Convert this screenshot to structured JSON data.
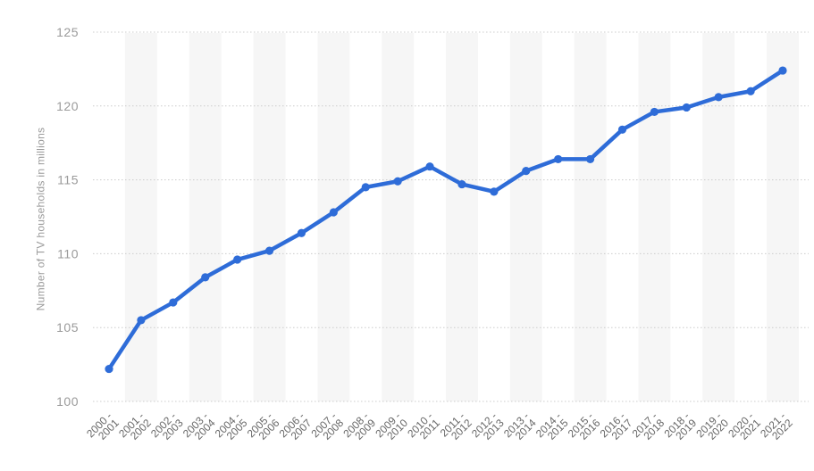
{
  "chart_data": {
    "type": "line",
    "title": "",
    "xlabel": "",
    "ylabel": "Number of TV households in millions",
    "categories": [
      "2000 - 2001",
      "2001 - 2002",
      "2002 - 2003",
      "2003 - 2004",
      "2004 - 2005",
      "2005 - 2006",
      "2006 - 2007",
      "2007 - 2008",
      "2008 - 2009",
      "2009 - 2010",
      "2010 - 2011",
      "2011 - 2012",
      "2012 - 2013",
      "2013 - 2014",
      "2014 - 2015",
      "2015 - 2016",
      "2016 - 2017",
      "2017 - 2018",
      "2018 - 2019",
      "2019 - 2020",
      "2020 - 2021",
      "2021 - 2022"
    ],
    "values": [
      102.2,
      105.5,
      106.7,
      108.4,
      109.6,
      110.2,
      111.4,
      112.8,
      114.5,
      114.9,
      115.9,
      114.7,
      114.2,
      115.6,
      116.4,
      116.4,
      118.4,
      119.6,
      119.9,
      120.6,
      121,
      122.4
    ],
    "ylim": [
      100,
      125
    ],
    "ytick_step": 5,
    "y_tick_labels": [
      "100",
      "105",
      "110",
      "115",
      "120",
      "125"
    ],
    "grid": "horizontal-dotted",
    "legend_position": "none",
    "colors": {
      "line": "#2e6cd8",
      "point": "#2e6cd8",
      "gridline": "#cccccc",
      "stripe": "#f6f6f6",
      "y_tick_label": "#9a9a9a",
      "x_tick_label": "#666666",
      "axis_title": "#9a9a9a",
      "background": "#ffffff"
    }
  }
}
